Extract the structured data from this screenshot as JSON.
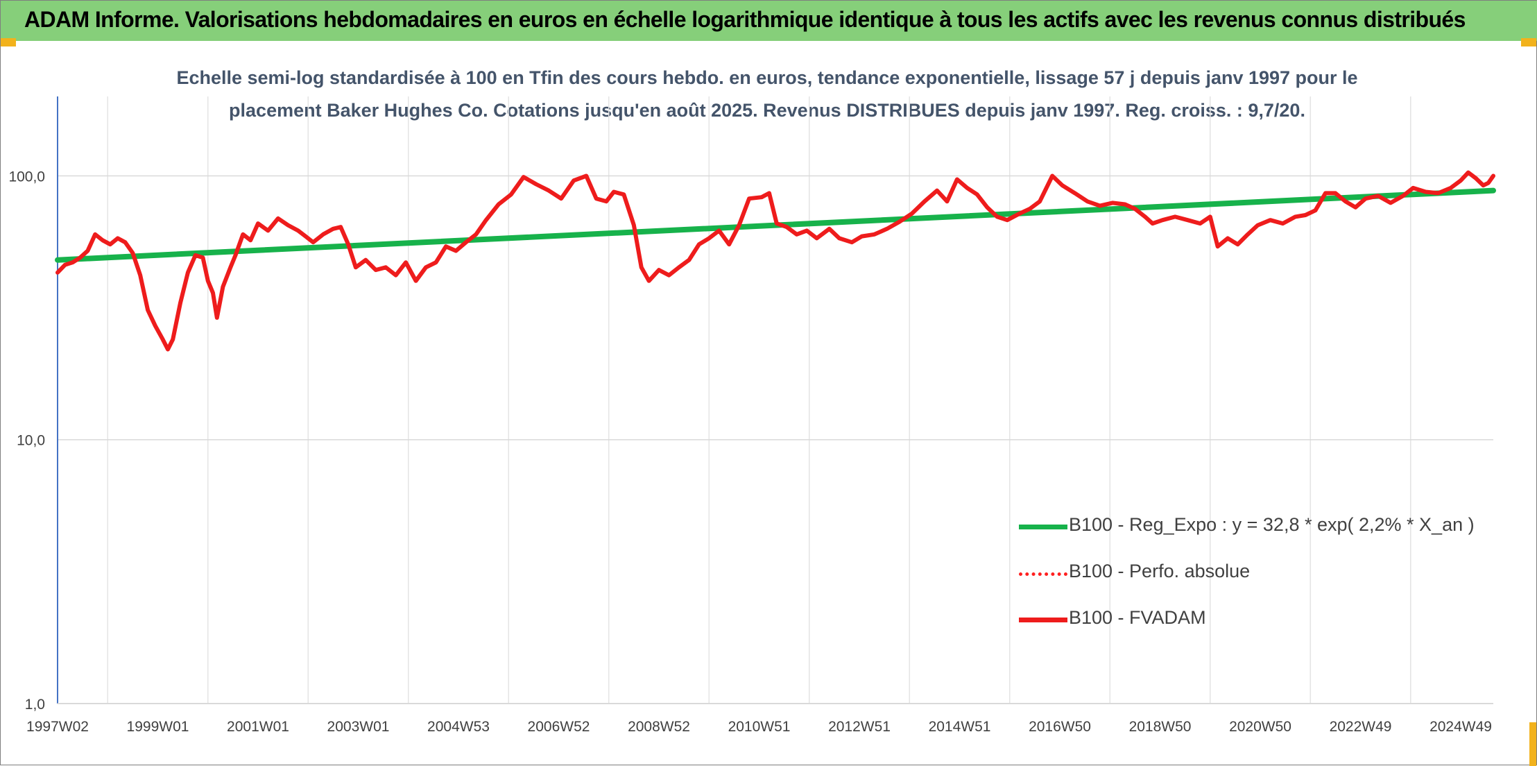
{
  "header": {
    "title": "ADAM Informe. Valorisations hebdomadaires en euros en échelle logarithmique identique à tous les actifs avec les revenus connus distribués"
  },
  "chart_data": {
    "type": "line",
    "title_line1": "Echelle semi-log standardisée à 100 en Tfin des cours hebdo. en euros, tendance exponentielle, lissage 57 j depuis janv 1997 pour le",
    "title_line2": "placement Baker Hughes Co. Cotations jusqu'en août 2025. Revenus DISTRIBUES depuis janv 1997. Reg. croiss. : 9,7/20.",
    "y_scale": "log",
    "ylim": [
      1,
      200
    ],
    "y_ticks": [
      {
        "value": 100,
        "label": "100,0"
      },
      {
        "value": 10,
        "label": "10,0"
      },
      {
        "value": 1,
        "label": "1,0"
      }
    ],
    "xlim": [
      1997.0,
      2025.65
    ],
    "x_ticks": [
      {
        "x": 1997.0,
        "label": "1997W02"
      },
      {
        "x": 1999.0,
        "label": "1999W01"
      },
      {
        "x": 2001.0,
        "label": "2001W01"
      },
      {
        "x": 2003.0,
        "label": "2003W01"
      },
      {
        "x": 2005.0,
        "label": "2004W53"
      },
      {
        "x": 2007.0,
        "label": "2006W52"
      },
      {
        "x": 2009.0,
        "label": "2008W52"
      },
      {
        "x": 2011.0,
        "label": "2010W51"
      },
      {
        "x": 2013.0,
        "label": "2012W51"
      },
      {
        "x": 2015.0,
        "label": "2014W51"
      },
      {
        "x": 2017.0,
        "label": "2016W50"
      },
      {
        "x": 2019.0,
        "label": "2018W50"
      },
      {
        "x": 2021.0,
        "label": "2020W50"
      },
      {
        "x": 2023.0,
        "label": "2022W49"
      },
      {
        "x": 2025.0,
        "label": "2024W49"
      }
    ],
    "grid": "vertical and horizontal",
    "legend_position": "bottom-right",
    "series": [
      {
        "name": "B100 - Reg_Expo : y = 32,8 * exp( 2,2% *  X_an )",
        "color": "#17b24b",
        "style": "solid",
        "points": [
          [
            1997.0,
            48
          ],
          [
            2025.65,
            88
          ]
        ]
      },
      {
        "name": "B100 - Perfo. absolue",
        "color": "#ff2020",
        "style": "dotted",
        "points": []
      },
      {
        "name": "B100 - FVADAM",
        "color": "#ee1c1c",
        "style": "solid",
        "points": [
          [
            1997.0,
            43
          ],
          [
            1997.15,
            46
          ],
          [
            1997.3,
            47
          ],
          [
            1997.45,
            49
          ],
          [
            1997.6,
            52
          ],
          [
            1997.75,
            60
          ],
          [
            1997.9,
            57
          ],
          [
            1998.05,
            55
          ],
          [
            1998.2,
            58
          ],
          [
            1998.35,
            56
          ],
          [
            1998.5,
            51
          ],
          [
            1998.65,
            42
          ],
          [
            1998.8,
            31
          ],
          [
            1998.95,
            27
          ],
          [
            1999.1,
            24
          ],
          [
            1999.2,
            22
          ],
          [
            1999.3,
            24
          ],
          [
            1999.45,
            33
          ],
          [
            1999.6,
            43
          ],
          [
            1999.75,
            50
          ],
          [
            1999.9,
            49
          ],
          [
            2000.0,
            40
          ],
          [
            2000.1,
            36
          ],
          [
            2000.18,
            29
          ],
          [
            2000.3,
            38
          ],
          [
            2000.45,
            45
          ],
          [
            2000.55,
            50
          ],
          [
            2000.7,
            60
          ],
          [
            2000.85,
            57
          ],
          [
            2001.0,
            66
          ],
          [
            2001.2,
            62
          ],
          [
            2001.4,
            69
          ],
          [
            2001.6,
            65
          ],
          [
            2001.8,
            62
          ],
          [
            2001.95,
            59
          ],
          [
            2002.1,
            56
          ],
          [
            2002.3,
            60
          ],
          [
            2002.5,
            63
          ],
          [
            2002.65,
            64
          ],
          [
            2002.8,
            55
          ],
          [
            2002.95,
            45
          ],
          [
            2003.15,
            48
          ],
          [
            2003.35,
            44
          ],
          [
            2003.55,
            45
          ],
          [
            2003.75,
            42
          ],
          [
            2003.95,
            47
          ],
          [
            2004.15,
            40
          ],
          [
            2004.35,
            45
          ],
          [
            2004.55,
            47
          ],
          [
            2004.75,
            54
          ],
          [
            2004.95,
            52
          ],
          [
            2005.15,
            56
          ],
          [
            2005.35,
            60
          ],
          [
            2005.55,
            68
          ],
          [
            2005.8,
            78
          ],
          [
            2006.05,
            85
          ],
          [
            2006.3,
            99
          ],
          [
            2006.55,
            93
          ],
          [
            2006.8,
            88
          ],
          [
            2007.05,
            82
          ],
          [
            2007.3,
            96
          ],
          [
            2007.55,
            100
          ],
          [
            2007.75,
            82
          ],
          [
            2007.95,
            80
          ],
          [
            2008.1,
            87
          ],
          [
            2008.3,
            85
          ],
          [
            2008.5,
            65
          ],
          [
            2008.65,
            45
          ],
          [
            2008.8,
            40
          ],
          [
            2009.0,
            44
          ],
          [
            2009.2,
            42
          ],
          [
            2009.4,
            45
          ],
          [
            2009.6,
            48
          ],
          [
            2009.8,
            55
          ],
          [
            2010.0,
            58
          ],
          [
            2010.2,
            62
          ],
          [
            2010.4,
            55
          ],
          [
            2010.6,
            65
          ],
          [
            2010.8,
            82
          ],
          [
            2011.05,
            83
          ],
          [
            2011.2,
            86
          ],
          [
            2011.35,
            66
          ],
          [
            2011.55,
            64
          ],
          [
            2011.75,
            60
          ],
          [
            2011.95,
            62
          ],
          [
            2012.15,
            58
          ],
          [
            2012.4,
            63
          ],
          [
            2012.6,
            58
          ],
          [
            2012.85,
            56
          ],
          [
            2013.05,
            59
          ],
          [
            2013.3,
            60
          ],
          [
            2013.55,
            63
          ],
          [
            2013.8,
            67
          ],
          [
            2014.05,
            72
          ],
          [
            2014.3,
            80
          ],
          [
            2014.55,
            88
          ],
          [
            2014.75,
            80
          ],
          [
            2014.95,
            97
          ],
          [
            2015.15,
            90
          ],
          [
            2015.35,
            85
          ],
          [
            2015.55,
            76
          ],
          [
            2015.75,
            70
          ],
          [
            2015.95,
            68
          ],
          [
            2016.2,
            72
          ],
          [
            2016.4,
            75
          ],
          [
            2016.6,
            80
          ],
          [
            2016.85,
            100
          ],
          [
            2017.05,
            92
          ],
          [
            2017.3,
            86
          ],
          [
            2017.55,
            80
          ],
          [
            2017.8,
            77
          ],
          [
            2018.05,
            79
          ],
          [
            2018.3,
            78
          ],
          [
            2018.5,
            75
          ],
          [
            2018.7,
            70
          ],
          [
            2018.85,
            66
          ],
          [
            2019.05,
            68
          ],
          [
            2019.3,
            70
          ],
          [
            2019.55,
            68
          ],
          [
            2019.8,
            66
          ],
          [
            2020.0,
            70
          ],
          [
            2020.15,
            54
          ],
          [
            2020.35,
            58
          ],
          [
            2020.55,
            55
          ],
          [
            2020.75,
            60
          ],
          [
            2020.95,
            65
          ],
          [
            2021.2,
            68
          ],
          [
            2021.45,
            66
          ],
          [
            2021.7,
            70
          ],
          [
            2021.9,
            71
          ],
          [
            2022.1,
            74
          ],
          [
            2022.3,
            86
          ],
          [
            2022.5,
            86
          ],
          [
            2022.7,
            80
          ],
          [
            2022.9,
            76
          ],
          [
            2023.1,
            82
          ],
          [
            2023.35,
            84
          ],
          [
            2023.6,
            79
          ],
          [
            2023.85,
            84
          ],
          [
            2024.05,
            90
          ],
          [
            2024.3,
            87
          ],
          [
            2024.55,
            86
          ],
          [
            2024.8,
            90
          ],
          [
            2025.0,
            96
          ],
          [
            2025.15,
            103
          ],
          [
            2025.3,
            98
          ],
          [
            2025.45,
            92
          ],
          [
            2025.55,
            94
          ],
          [
            2025.65,
            100
          ]
        ]
      }
    ]
  }
}
